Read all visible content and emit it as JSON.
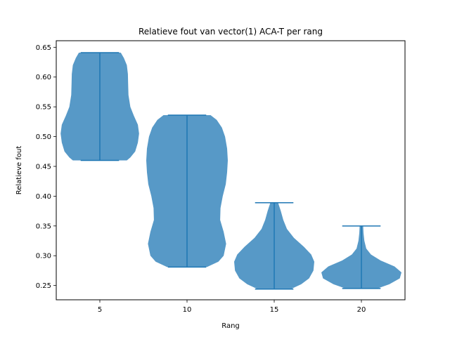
{
  "chart_data": {
    "type": "violin",
    "title": "Relatieve fout van vector(1) ACA-T per rang",
    "xlabel": "Rang",
    "ylabel": "Relatieve fout",
    "xlim": [
      2.5,
      22.5
    ],
    "ylim": [
      0.226,
      0.661
    ],
    "x_ticks": [
      5,
      10,
      15,
      20
    ],
    "y_ticks": [
      0.25,
      0.3,
      0.35,
      0.4,
      0.45,
      0.5,
      0.55,
      0.6,
      0.65
    ],
    "y_tick_labels": [
      "0.25",
      "0.30",
      "0.35",
      "0.40",
      "0.45",
      "0.50",
      "0.55",
      "0.60",
      "0.65"
    ],
    "fill_color": "#1f77b4",
    "fill_alpha": 0.75,
    "line_color": "#1f77b4",
    "violins": [
      {
        "position": 5,
        "min": 0.46,
        "max": 0.641,
        "profile": [
          [
            0.46,
            1.55
          ],
          [
            0.465,
            1.75
          ],
          [
            0.475,
            2.03
          ],
          [
            0.49,
            2.18
          ],
          [
            0.505,
            2.25
          ],
          [
            0.52,
            2.18
          ],
          [
            0.535,
            1.95
          ],
          [
            0.55,
            1.75
          ],
          [
            0.57,
            1.64
          ],
          [
            0.59,
            1.62
          ],
          [
            0.605,
            1.61
          ],
          [
            0.62,
            1.55
          ],
          [
            0.632,
            1.38
          ],
          [
            0.641,
            1.2
          ]
        ]
      },
      {
        "position": 10,
        "min": 0.281,
        "max": 0.536,
        "profile": [
          [
            0.281,
            1.15
          ],
          [
            0.29,
            1.8
          ],
          [
            0.3,
            2.1
          ],
          [
            0.32,
            2.24
          ],
          [
            0.34,
            2.1
          ],
          [
            0.36,
            1.9
          ],
          [
            0.38,
            1.92
          ],
          [
            0.4,
            2.05
          ],
          [
            0.42,
            2.22
          ],
          [
            0.44,
            2.3
          ],
          [
            0.46,
            2.34
          ],
          [
            0.48,
            2.3
          ],
          [
            0.5,
            2.18
          ],
          [
            0.515,
            2.0
          ],
          [
            0.528,
            1.7
          ],
          [
            0.536,
            1.35
          ]
        ]
      },
      {
        "position": 15,
        "min": 0.244,
        "max": 0.389,
        "profile": [
          [
            0.244,
            0.95
          ],
          [
            0.252,
            1.55
          ],
          [
            0.262,
            2.0
          ],
          [
            0.275,
            2.25
          ],
          [
            0.29,
            2.3
          ],
          [
            0.302,
            2.12
          ],
          [
            0.315,
            1.7
          ],
          [
            0.33,
            1.13
          ],
          [
            0.345,
            0.73
          ],
          [
            0.36,
            0.52
          ],
          [
            0.375,
            0.38
          ],
          [
            0.389,
            0.22
          ]
        ]
      },
      {
        "position": 20,
        "min": 0.245,
        "max": 0.35,
        "profile": [
          [
            0.245,
            0.92
          ],
          [
            0.252,
            1.6
          ],
          [
            0.262,
            2.2
          ],
          [
            0.272,
            2.3
          ],
          [
            0.282,
            1.9
          ],
          [
            0.292,
            1.1
          ],
          [
            0.302,
            0.55
          ],
          [
            0.312,
            0.28
          ],
          [
            0.325,
            0.17
          ],
          [
            0.338,
            0.12
          ],
          [
            0.35,
            0.1
          ]
        ]
      }
    ]
  }
}
